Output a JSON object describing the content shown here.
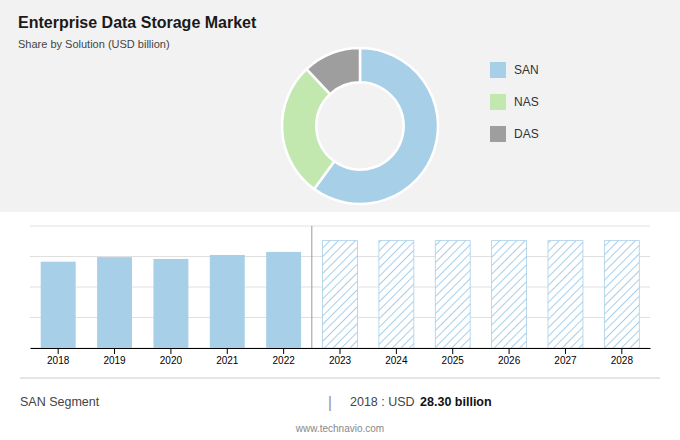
{
  "chart_data": [
    {
      "type": "pie",
      "title": "Enterprise Data Storage Market",
      "subtitle": "Share by Solution (USD billion)",
      "categories": [
        "SAN",
        "NAS",
        "DAS"
      ],
      "values": [
        60,
        28,
        12
      ],
      "colors": [
        "#a8cfe8",
        "#c2e8b0",
        "#9e9e9e"
      ],
      "legend": "right"
    },
    {
      "type": "bar",
      "categories": [
        "2018",
        "2019",
        "2020",
        "2021",
        "2022",
        "2023",
        "2024",
        "2025",
        "2026",
        "2027",
        "2028"
      ],
      "series": [
        {
          "color": "#a8cfe8",
          "values": [
            28.3,
            29.8,
            29.2,
            30.5,
            31.5,
            null,
            null,
            null,
            null,
            null,
            null
          ]
        },
        {
          "color": "#a8cfe8",
          "values": [
            null,
            null,
            null,
            null,
            null,
            35.2,
            35.2,
            35.2,
            35.2,
            35.2,
            35.2
          ]
        }
      ],
      "ylim": [
        0,
        40
      ],
      "yticks": [
        0,
        10,
        20,
        30,
        40
      ],
      "grid": true,
      "tick_labels": "x",
      "annotations": [
        "SAN Segment",
        "|",
        "2018 : USD ",
        "28.30 billion",
        "www.technavio.com"
      ]
    }
  ]
}
